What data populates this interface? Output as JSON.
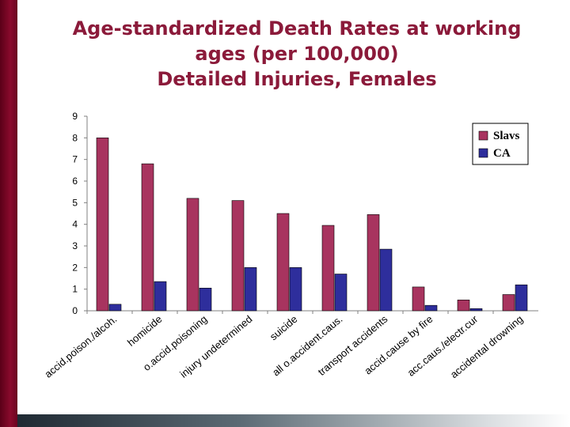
{
  "slide": {
    "title_lines": [
      "Age-standardized Death Rates at working",
      "ages (per 100,000)",
      "Detailed Injuries, Females"
    ]
  },
  "colors": {
    "slavs": "#a8345f",
    "ca": "#2e2e9c",
    "title": "#8b1a3a",
    "accent_bar": "#8a0a2c"
  },
  "chart_data": {
    "type": "bar",
    "categories": [
      "accid.poison./alcoh.",
      "homicide",
      "o.accid.poisoning",
      "injury undetermined",
      "suicide",
      "all o.accident.caus.",
      "transport accidents",
      "accid.cause by fire",
      "acc.caus./electr.cur",
      "accidental drowning"
    ],
    "series": [
      {
        "name": "Slavs",
        "values": [
          8.0,
          6.8,
          5.2,
          5.1,
          4.5,
          3.95,
          4.45,
          1.1,
          0.5,
          0.75
        ]
      },
      {
        "name": "CA",
        "values": [
          0.3,
          1.35,
          1.05,
          2.0,
          2.0,
          1.7,
          2.85,
          0.25,
          0.1,
          1.2
        ]
      }
    ],
    "y_ticks": [
      "0",
      "1",
      "2",
      "3",
      "4",
      "5",
      "6",
      "7",
      "8",
      "9"
    ],
    "ylim": [
      0,
      9
    ],
    "xlabel": "",
    "ylabel": "",
    "legend_position": "top-right",
    "grid": false
  }
}
